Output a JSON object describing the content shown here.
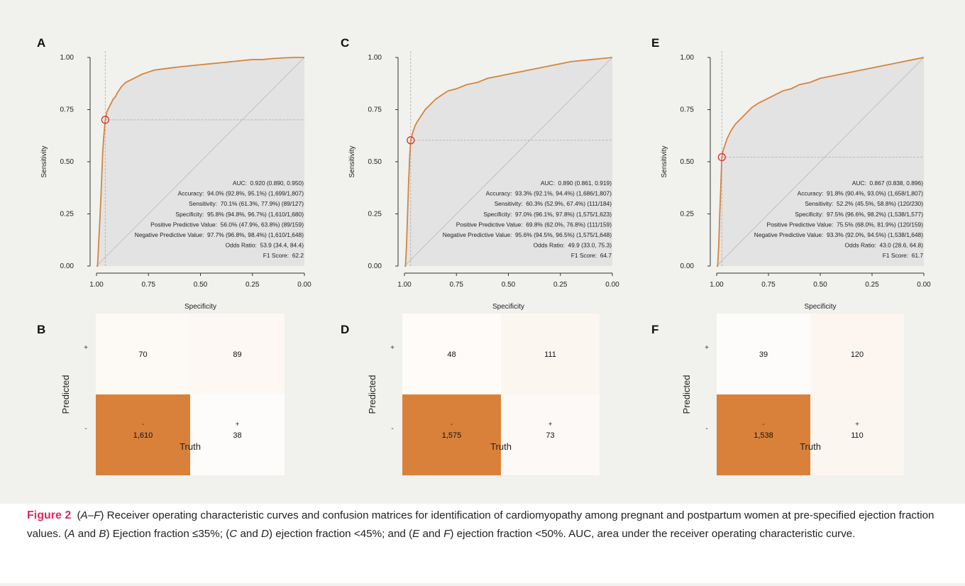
{
  "caption": {
    "label": "Figure 2",
    "s1": " (",
    "s2": "A–F",
    "s3": ") Receiver operating characteristic curves and confusion matrices for identification of cardiomyopathy among pregnant and postpartum women at pre-specified ejection fraction values. (",
    "s4": "A",
    "s5": " and ",
    "s6": "B",
    "s7": ") Ejection fraction ≤35%; (",
    "s8": "C",
    "s9": " and ",
    "s10": "D",
    "s11": ") ejection fraction <45%; and (",
    "s12": "E",
    "s13": " and ",
    "s14": "F",
    "s15": ") ejection fraction <50%. AUC, area under the receiver operating characteristic curve."
  },
  "colors": {
    "curve": "#d4843e",
    "fill": "#e3e3e3",
    "marker": "#d92b2b",
    "matrix_high": "#d9813a",
    "matrix_low": "#fdf4ef",
    "matrix_white": "#ffffff",
    "background": "#f1f1ee"
  },
  "chart_data": [
    {
      "panel": "A",
      "type": "line",
      "xlabel": "Specificity",
      "ylabel": "Sensitivity",
      "xlim": [
        1.0,
        0.0
      ],
      "ylim": [
        0.0,
        1.0
      ],
      "x_ticks": [
        "1.00",
        "0.75",
        "0.50",
        "0.25",
        "0.00"
      ],
      "y_ticks": [
        "0.00",
        "0.25",
        "0.50",
        "0.75",
        "1.00"
      ],
      "reversed_x": true,
      "operating_point": {
        "specificity": 0.958,
        "sensitivity": 0.701
      },
      "curve": {
        "specificity": [
          1.0,
          0.995,
          0.99,
          0.985,
          0.98,
          0.975,
          0.97,
          0.965,
          0.958,
          0.95,
          0.94,
          0.93,
          0.92,
          0.91,
          0.9,
          0.88,
          0.86,
          0.84,
          0.82,
          0.8,
          0.78,
          0.75,
          0.72,
          0.68,
          0.64,
          0.6,
          0.55,
          0.5,
          0.45,
          0.4,
          0.35,
          0.3,
          0.25,
          0.2,
          0.15,
          0.1,
          0.05,
          0.0
        ],
        "sensitivity": [
          0.0,
          0.0,
          0.1,
          0.2,
          0.3,
          0.42,
          0.55,
          0.62,
          0.701,
          0.74,
          0.76,
          0.78,
          0.8,
          0.81,
          0.83,
          0.86,
          0.88,
          0.89,
          0.9,
          0.91,
          0.92,
          0.93,
          0.94,
          0.945,
          0.95,
          0.955,
          0.96,
          0.965,
          0.97,
          0.975,
          0.98,
          0.985,
          0.99,
          0.99,
          0.995,
          0.998,
          1.0,
          1.0
        ]
      },
      "stats": [
        "AUC:  0.920 (0.890, 0.950)",
        "Accuracy:  94.0% (92.8%, 95.1%) (1,699/1,807)",
        "Sensitivity:  70.1% (61.3%, 77.9%) (89/127)",
        "Specificity:  95.8% (94.8%, 96.7%) (1,610/1,680)",
        "Positive Predictive Value:  56.0% (47.9%, 63.8%) (89/159)",
        "Negative Predictive Value:  97.7% (96.8%, 98.4%) (1,610/1,648)",
        "Odds Ratio:  53.9 (34.4, 84.4)",
        "F1 Score:  62.2"
      ]
    },
    {
      "panel": "C",
      "type": "line",
      "xlabel": "Specificity",
      "ylabel": "Sensitivity",
      "xlim": [
        1.0,
        0.0
      ],
      "ylim": [
        0.0,
        1.0
      ],
      "x_ticks": [
        "1.00",
        "0.75",
        "0.50",
        "0.25",
        "0.00"
      ],
      "y_ticks": [
        "0.00",
        "0.25",
        "0.50",
        "0.75",
        "1.00"
      ],
      "reversed_x": true,
      "operating_point": {
        "specificity": 0.97,
        "sensitivity": 0.603
      },
      "curve": {
        "specificity": [
          1.0,
          0.995,
          0.99,
          0.985,
          0.98,
          0.975,
          0.97,
          0.96,
          0.95,
          0.94,
          0.92,
          0.9,
          0.88,
          0.85,
          0.82,
          0.79,
          0.75,
          0.7,
          0.65,
          0.6,
          0.55,
          0.5,
          0.45,
          0.4,
          0.35,
          0.3,
          0.25,
          0.2,
          0.15,
          0.1,
          0.05,
          0.0
        ],
        "sensitivity": [
          0.0,
          0.0,
          0.1,
          0.25,
          0.4,
          0.52,
          0.603,
          0.64,
          0.67,
          0.69,
          0.72,
          0.75,
          0.77,
          0.8,
          0.82,
          0.84,
          0.85,
          0.87,
          0.88,
          0.9,
          0.91,
          0.92,
          0.93,
          0.94,
          0.95,
          0.96,
          0.97,
          0.98,
          0.985,
          0.99,
          0.995,
          1.0
        ]
      },
      "stats": [
        "AUC:  0.890 (0.861, 0.919)",
        "Accuracy:  93.3% (92.1%, 94.4%) (1,686/1,807)",
        "Sensitivity:  60.3% (52.9%, 67.4%) (111/184)",
        "Specificity:  97.0% (96.1%, 97.8%) (1,575/1,623)",
        "Positive Predictive Value:  69.8% (62.0%, 76.8%) (111/159)",
        "Negative Predictive Value:  95.6% (94.5%, 96.5%) (1,575/1,648)",
        "Odds Ratio:  49.9 (33.0, 75.3)",
        "F1 Score:  64.7"
      ]
    },
    {
      "panel": "E",
      "type": "line",
      "xlabel": "Specificity",
      "ylabel": "Sensitivity",
      "xlim": [
        1.0,
        0.0
      ],
      "ylim": [
        0.0,
        1.0
      ],
      "x_ticks": [
        "1.00",
        "0.75",
        "0.50",
        "0.25",
        "0.00"
      ],
      "y_ticks": [
        "0.00",
        "0.25",
        "0.50",
        "0.75",
        "1.00"
      ],
      "reversed_x": true,
      "operating_point": {
        "specificity": 0.975,
        "sensitivity": 0.522
      },
      "curve": {
        "specificity": [
          1.0,
          0.995,
          0.99,
          0.985,
          0.98,
          0.975,
          0.97,
          0.96,
          0.95,
          0.93,
          0.91,
          0.89,
          0.86,
          0.83,
          0.8,
          0.76,
          0.72,
          0.68,
          0.64,
          0.6,
          0.55,
          0.5,
          0.45,
          0.4,
          0.35,
          0.3,
          0.25,
          0.2,
          0.15,
          0.1,
          0.05,
          0.0
        ],
        "sensitivity": [
          0.0,
          0.0,
          0.1,
          0.25,
          0.38,
          0.522,
          0.55,
          0.58,
          0.61,
          0.65,
          0.68,
          0.7,
          0.73,
          0.76,
          0.78,
          0.8,
          0.82,
          0.84,
          0.85,
          0.87,
          0.88,
          0.9,
          0.91,
          0.92,
          0.93,
          0.94,
          0.95,
          0.96,
          0.97,
          0.98,
          0.99,
          1.0
        ]
      },
      "stats": [
        "AUC:  0.867 (0.838, 0.896)",
        "Accuracy:  91.8% (90.4%, 93.0%) (1,658/1,807)",
        "Sensitivity:  52.2% (45.5%, 58.8%) (120/230)",
        "Specificity:  97.5% (96.6%, 98.2%) (1,538/1,577)",
        "Positive Predictive Value:  75.5% (68.0%, 81.9%) (120/159)",
        "Negative Predictive Value:  93.3% (92.0%, 94.5%) (1,538/1,648)",
        "Odds Ratio:  43.0 (28.6, 64.8)",
        "F1 Score:  61.7"
      ]
    },
    {
      "panel": "B",
      "type": "heatmap",
      "xlabel": "Truth",
      "ylabel": "Predicted",
      "x_categories": [
        "-",
        "+"
      ],
      "y_categories": [
        "+",
        "-"
      ],
      "cells": [
        {
          "predicted": "+",
          "truth": "-",
          "value": 70,
          "label": "70"
        },
        {
          "predicted": "+",
          "truth": "+",
          "value": 89,
          "label": "89"
        },
        {
          "predicted": "-",
          "truth": "-",
          "value": 1610,
          "label": "1,610"
        },
        {
          "predicted": "-",
          "truth": "+",
          "value": 38,
          "label": "38"
        }
      ]
    },
    {
      "panel": "D",
      "type": "heatmap",
      "xlabel": "Truth",
      "ylabel": "Predicted",
      "x_categories": [
        "-",
        "+"
      ],
      "y_categories": [
        "+",
        "-"
      ],
      "cells": [
        {
          "predicted": "+",
          "truth": "-",
          "value": 48,
          "label": "48"
        },
        {
          "predicted": "+",
          "truth": "+",
          "value": 111,
          "label": "111"
        },
        {
          "predicted": "-",
          "truth": "-",
          "value": 1575,
          "label": "1,575"
        },
        {
          "predicted": "-",
          "truth": "+",
          "value": 73,
          "label": "73"
        }
      ]
    },
    {
      "panel": "F",
      "type": "heatmap",
      "xlabel": "Truth",
      "ylabel": "Predicted",
      "x_categories": [
        "-",
        "+"
      ],
      "y_categories": [
        "+",
        "-"
      ],
      "cells": [
        {
          "predicted": "+",
          "truth": "-",
          "value": 39,
          "label": "39"
        },
        {
          "predicted": "+",
          "truth": "+",
          "value": 120,
          "label": "120"
        },
        {
          "predicted": "-",
          "truth": "-",
          "value": 1538,
          "label": "1,538"
        },
        {
          "predicted": "-",
          "truth": "+",
          "value": 110,
          "label": "110"
        }
      ]
    }
  ]
}
